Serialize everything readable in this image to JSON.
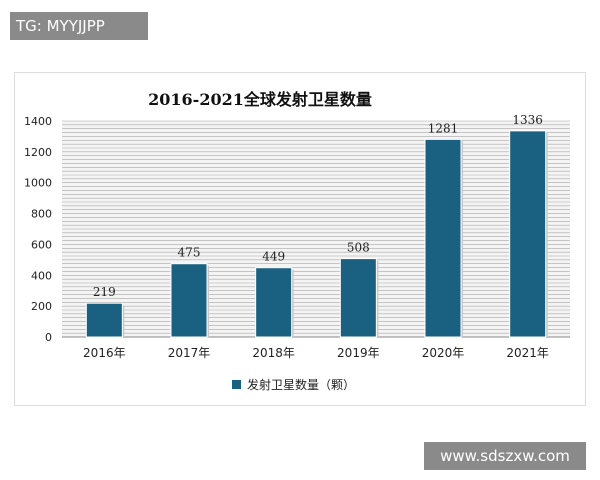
{
  "tag": "TG: MYYJJPP",
  "watermark": "www.sdszxw.com",
  "chart_data": {
    "type": "bar",
    "title": "2016-2021全球发射卫星数量",
    "categories": [
      "2016年",
      "2017年",
      "2018年",
      "2019年",
      "2020年",
      "2021年"
    ],
    "series": [
      {
        "name": "发射卫星数量（颗）",
        "values": [
          219,
          475,
          449,
          508,
          1281,
          1336
        ]
      }
    ],
    "ylim": [
      0,
      1400
    ],
    "yticks": [
      0,
      200,
      400,
      600,
      800,
      1000,
      1200,
      1400
    ],
    "grid": true,
    "legend": "bottom",
    "bar_color": "#1a6080"
  }
}
